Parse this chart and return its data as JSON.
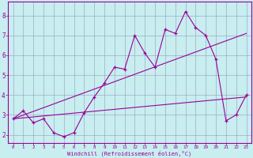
{
  "xlabel": "Windchill (Refroidissement éolien,°C)",
  "bg_color": "#c8eef0",
  "line_color": "#990099",
  "grid_color": "#9999bb",
  "xlim": [
    -0.5,
    23.5
  ],
  "ylim": [
    1.6,
    8.7
  ],
  "xticks": [
    0,
    1,
    2,
    3,
    4,
    5,
    6,
    7,
    8,
    9,
    10,
    11,
    12,
    13,
    14,
    15,
    16,
    17,
    18,
    19,
    20,
    21,
    22,
    23
  ],
  "yticks": [
    2,
    3,
    4,
    5,
    6,
    7,
    8
  ],
  "line1_x": [
    0,
    1,
    2,
    3,
    4,
    5,
    6,
    7,
    8,
    9,
    10,
    11,
    12,
    13,
    14,
    15,
    16,
    17,
    18,
    19,
    20,
    21,
    22,
    23
  ],
  "line1_y": [
    2.8,
    3.2,
    2.6,
    2.8,
    2.1,
    1.9,
    2.1,
    3.1,
    3.9,
    4.6,
    5.4,
    5.3,
    7.0,
    6.1,
    5.4,
    7.3,
    7.1,
    8.2,
    7.4,
    7.0,
    5.8,
    2.7,
    3.0,
    4.0
  ],
  "line2_x": [
    0,
    23
  ],
  "line2_y": [
    2.8,
    3.9
  ],
  "line3_x": [
    0,
    23
  ],
  "line3_y": [
    2.8,
    7.1
  ]
}
